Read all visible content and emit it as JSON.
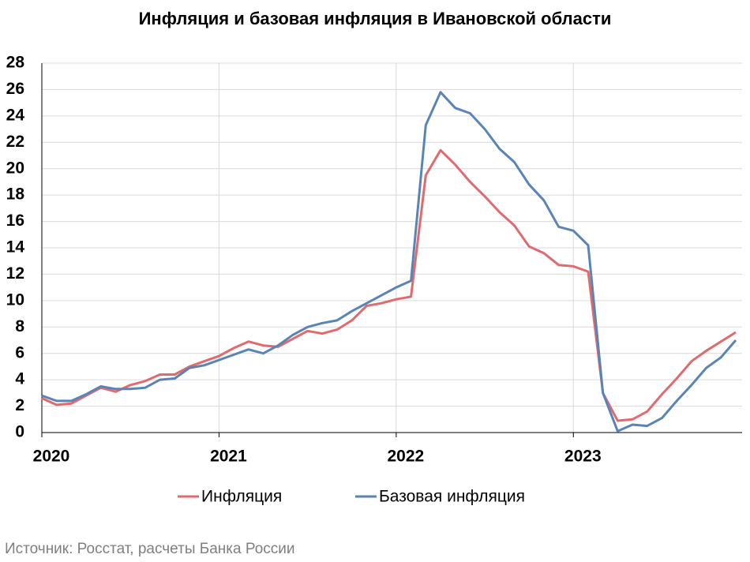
{
  "chart_data": {
    "type": "line",
    "title": "Инфляция и базовая инфляция в Ивановской области",
    "source": "Источник: Росстат, расчеты Банка России",
    "categories": [
      "2020",
      null,
      null,
      null,
      null,
      null,
      null,
      null,
      null,
      null,
      null,
      null,
      "2021",
      null,
      null,
      null,
      null,
      null,
      null,
      null,
      null,
      null,
      null,
      null,
      "2022",
      null,
      null,
      null,
      null,
      null,
      null,
      null,
      null,
      null,
      null,
      null,
      "2023",
      null,
      null,
      null,
      null,
      null,
      null,
      null,
      null,
      null,
      null,
      null
    ],
    "series": [
      {
        "name": "Инфляция",
        "color": "#e06a6e",
        "values": [
          2.6,
          2.1,
          2.2,
          2.8,
          3.4,
          3.1,
          3.6,
          3.9,
          4.4,
          4.4,
          5.0,
          5.4,
          5.8,
          6.4,
          6.9,
          6.6,
          6.5,
          7.1,
          7.7,
          7.5,
          7.8,
          8.5,
          9.6,
          9.8,
          10.1,
          10.3,
          19.5,
          21.4,
          20.3,
          19.0,
          17.9,
          16.7,
          15.7,
          14.1,
          13.6,
          12.7,
          12.6,
          12.2,
          3.0,
          0.9,
          1.0,
          1.6,
          2.9,
          4.1,
          5.4,
          6.2,
          6.9,
          7.6
        ]
      },
      {
        "name": "Базовая инфляция",
        "color": "#5b84b6",
        "values": [
          2.8,
          2.4,
          2.4,
          2.9,
          3.5,
          3.3,
          3.3,
          3.4,
          4.0,
          4.1,
          4.9,
          5.1,
          5.5,
          5.9,
          6.3,
          6.0,
          6.6,
          7.4,
          8.0,
          8.3,
          8.5,
          9.2,
          9.8,
          10.4,
          11.0,
          11.5,
          23.3,
          25.8,
          24.6,
          24.2,
          23.0,
          21.5,
          20.5,
          18.8,
          17.6,
          15.6,
          15.3,
          14.2,
          3.0,
          0.1,
          0.6,
          0.5,
          1.1,
          2.4,
          3.6,
          4.9,
          5.7,
          7.0
        ]
      }
    ],
    "ylim": [
      0,
      28
    ],
    "yticks": [
      0,
      2,
      4,
      6,
      8,
      10,
      12,
      14,
      16,
      18,
      20,
      22,
      24,
      26,
      28
    ],
    "grid": true,
    "legend": "bottom"
  }
}
